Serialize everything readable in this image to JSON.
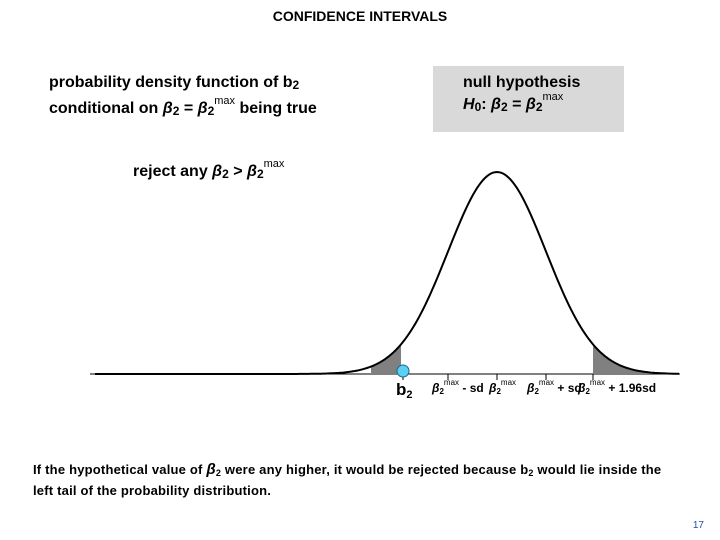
{
  "title": "CONFIDENCE INTERVALS",
  "pdf_label": {
    "line1": "probability density function of b",
    "line1_sub": "2",
    "line2_a": "conditional on ",
    "beta": "β",
    "sub2": "2",
    "eq": " = ",
    "sup_max": "max",
    "line2_b": " being true"
  },
  "null_hypothesis": {
    "heading": "null hypothesis",
    "h": "H",
    "h_sub": "0",
    "colon": ": ",
    "beta": "β",
    "sub2": "2",
    "eq": " = ",
    "sup_max": "max"
  },
  "reject_label": {
    "text": "reject any ",
    "beta": "β",
    "sub2": "2",
    "gt": " > ",
    "sup_max": "max"
  },
  "axis_labels": {
    "b2": "b",
    "b2_sub": "2",
    "beta": "β",
    "sub2": "2",
    "sup_max": "max",
    "minus_sd": " - sd",
    "plus_sd": " + sd",
    "plus_196sd": " + 1.96sd"
  },
  "footnote": {
    "part1": "If the hypothetical value of ",
    "beta": "β",
    "sub2": "2",
    "part2": " were any higher, it would be rejected because b",
    "part3": " would lie inside the left tail of the probability distribution."
  },
  "page_number": "17",
  "colors": {
    "shade": "#808080",
    "null_box": "#d9d9d9",
    "marker": "#5bd0f0",
    "page_number": "#1f4eaa"
  }
}
